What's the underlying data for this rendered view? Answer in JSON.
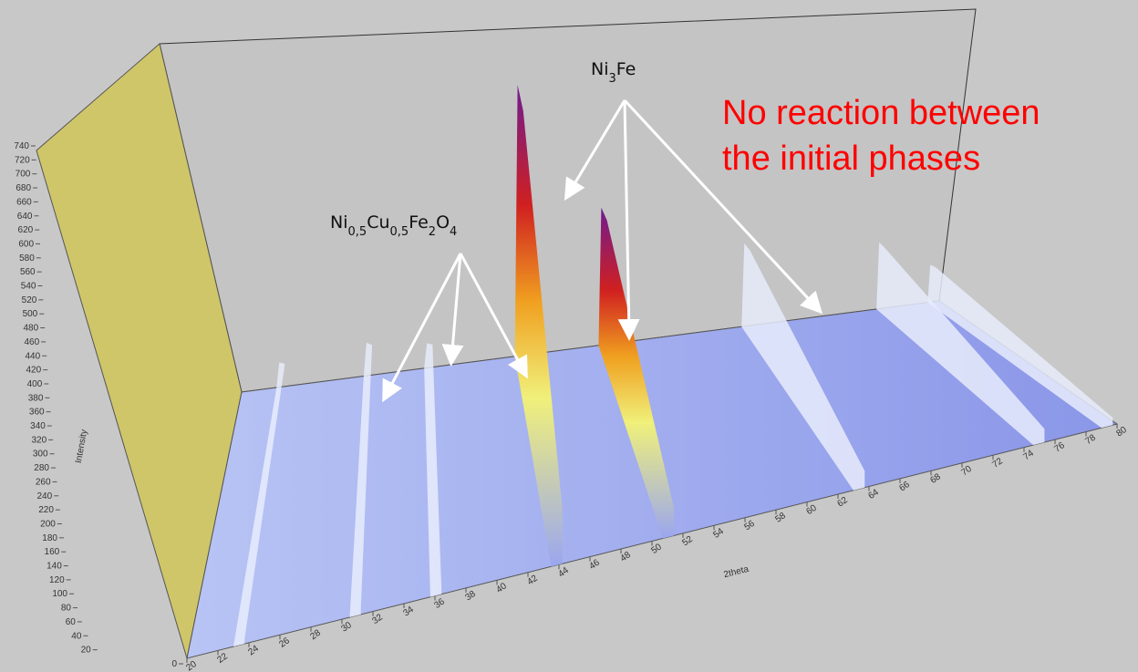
{
  "chart_data": {
    "type": "surface3d",
    "y_label": "Intensity",
    "x_label": "2theta",
    "ylim": [
      0,
      740
    ],
    "yticks": [
      0,
      20,
      40,
      60,
      80,
      100,
      120,
      140,
      160,
      180,
      200,
      220,
      240,
      260,
      280,
      300,
      320,
      340,
      360,
      380,
      400,
      420,
      440,
      460,
      480,
      500,
      520,
      540,
      560,
      580,
      600,
      620,
      640,
      660,
      680,
      700,
      720,
      740
    ],
    "xlim": [
      20,
      80
    ],
    "xticks": [
      20,
      22,
      24,
      26,
      28,
      30,
      32,
      34,
      36,
      38,
      40,
      42,
      44,
      46,
      48,
      50,
      52,
      54,
      56,
      58,
      60,
      62,
      64,
      66,
      68,
      70,
      72,
      74,
      76,
      78,
      80
    ],
    "peaks": {
      "x": [
        23,
        30.5,
        35.7,
        43.5,
        50.7,
        63,
        74.6,
        79
      ],
      "values": [
        60,
        80,
        60,
        650,
        330,
        200,
        160,
        90
      ]
    },
    "annotations": [
      {
        "parts": [
          "Ni",
          "0,5",
          "Cu",
          "0,5",
          "Fe",
          "2",
          "O",
          "4"
        ]
      },
      {
        "parts": [
          "Ni",
          "3",
          "Fe"
        ]
      },
      {
        "lines": [
          "No reaction between",
          "the initial phases"
        ]
      }
    ]
  }
}
